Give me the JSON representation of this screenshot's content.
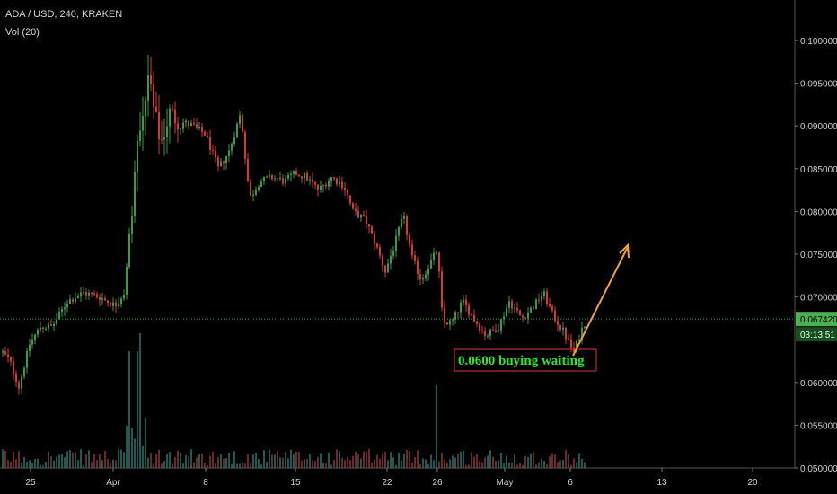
{
  "header": {
    "symbol_line": "ADA / USD, 240, KRAKEN",
    "volume_line": "Vol (20)"
  },
  "colors": {
    "background": "#000000",
    "up": "#3a9a4a",
    "down": "#d23a3a",
    "price_line": "#3da03d",
    "arrow": "#f2a13a",
    "annotation_text": "#2ee62e",
    "annotation_border": "#d23a3a"
  },
  "chart_data": {
    "type": "candlestick",
    "title": "ADA / USD, 240, KRAKEN",
    "x_tick_labels": [
      "25",
      "Apr",
      "8",
      "15",
      "22",
      "26",
      "May",
      "6",
      "13",
      "20"
    ],
    "y_tick_labels": [
      "0.100000",
      "0.095000",
      "0.090000",
      "0.085000",
      "0.080000",
      "0.075000",
      "0.070000",
      "0.060000",
      "0.055000",
      "0.050000"
    ],
    "ylim": [
      0.05,
      0.102
    ],
    "grid": false,
    "current_price": "0.067420",
    "countdown": "03:13:51",
    "anchors_close": [
      {
        "t": 0,
        "v": 0.0635
      },
      {
        "t": 8,
        "v": 0.0625
      },
      {
        "t": 18,
        "v": 0.0595
      },
      {
        "t": 30,
        "v": 0.0645
      },
      {
        "t": 42,
        "v": 0.0665
      },
      {
        "t": 55,
        "v": 0.0665
      },
      {
        "t": 72,
        "v": 0.0695
      },
      {
        "t": 90,
        "v": 0.0705
      },
      {
        "t": 108,
        "v": 0.07
      },
      {
        "t": 125,
        "v": 0.069
      },
      {
        "t": 135,
        "v": 0.0705
      },
      {
        "t": 142,
        "v": 0.078
      },
      {
        "t": 150,
        "v": 0.088
      },
      {
        "t": 157,
        "v": 0.092
      },
      {
        "t": 163,
        "v": 0.096
      },
      {
        "t": 168,
        "v": 0.092
      },
      {
        "t": 176,
        "v": 0.088
      },
      {
        "t": 186,
        "v": 0.0915
      },
      {
        "t": 198,
        "v": 0.0905
      },
      {
        "t": 212,
        "v": 0.09
      },
      {
        "t": 226,
        "v": 0.089
      },
      {
        "t": 240,
        "v": 0.085
      },
      {
        "t": 252,
        "v": 0.087
      },
      {
        "t": 265,
        "v": 0.0915
      },
      {
        "t": 275,
        "v": 0.0815
      },
      {
        "t": 286,
        "v": 0.0835
      },
      {
        "t": 300,
        "v": 0.084
      },
      {
        "t": 314,
        "v": 0.0835
      },
      {
        "t": 326,
        "v": 0.0845
      },
      {
        "t": 338,
        "v": 0.084
      },
      {
        "t": 352,
        "v": 0.0825
      },
      {
        "t": 366,
        "v": 0.084
      },
      {
        "t": 380,
        "v": 0.083
      },
      {
        "t": 390,
        "v": 0.08
      },
      {
        "t": 404,
        "v": 0.079
      },
      {
        "t": 414,
        "v": 0.0765
      },
      {
        "t": 426,
        "v": 0.073
      },
      {
        "t": 436,
        "v": 0.076
      },
      {
        "t": 446,
        "v": 0.0795
      },
      {
        "t": 456,
        "v": 0.0745
      },
      {
        "t": 466,
        "v": 0.072
      },
      {
        "t": 476,
        "v": 0.074
      },
      {
        "t": 484,
        "v": 0.0755
      },
      {
        "t": 490,
        "v": 0.067
      },
      {
        "t": 500,
        "v": 0.067
      },
      {
        "t": 512,
        "v": 0.0695
      },
      {
        "t": 524,
        "v": 0.0675
      },
      {
        "t": 538,
        "v": 0.0655
      },
      {
        "t": 552,
        "v": 0.0665
      },
      {
        "t": 564,
        "v": 0.0695
      },
      {
        "t": 578,
        "v": 0.0675
      },
      {
        "t": 592,
        "v": 0.069
      },
      {
        "t": 602,
        "v": 0.0705
      },
      {
        "t": 612,
        "v": 0.068
      },
      {
        "t": 624,
        "v": 0.066
      },
      {
        "t": 636,
        "v": 0.0635
      },
      {
        "t": 644,
        "v": 0.066
      },
      {
        "t": 650,
        "v": 0.0674
      }
    ]
  },
  "annotation": {
    "text": "0.0600 buying waiting"
  }
}
